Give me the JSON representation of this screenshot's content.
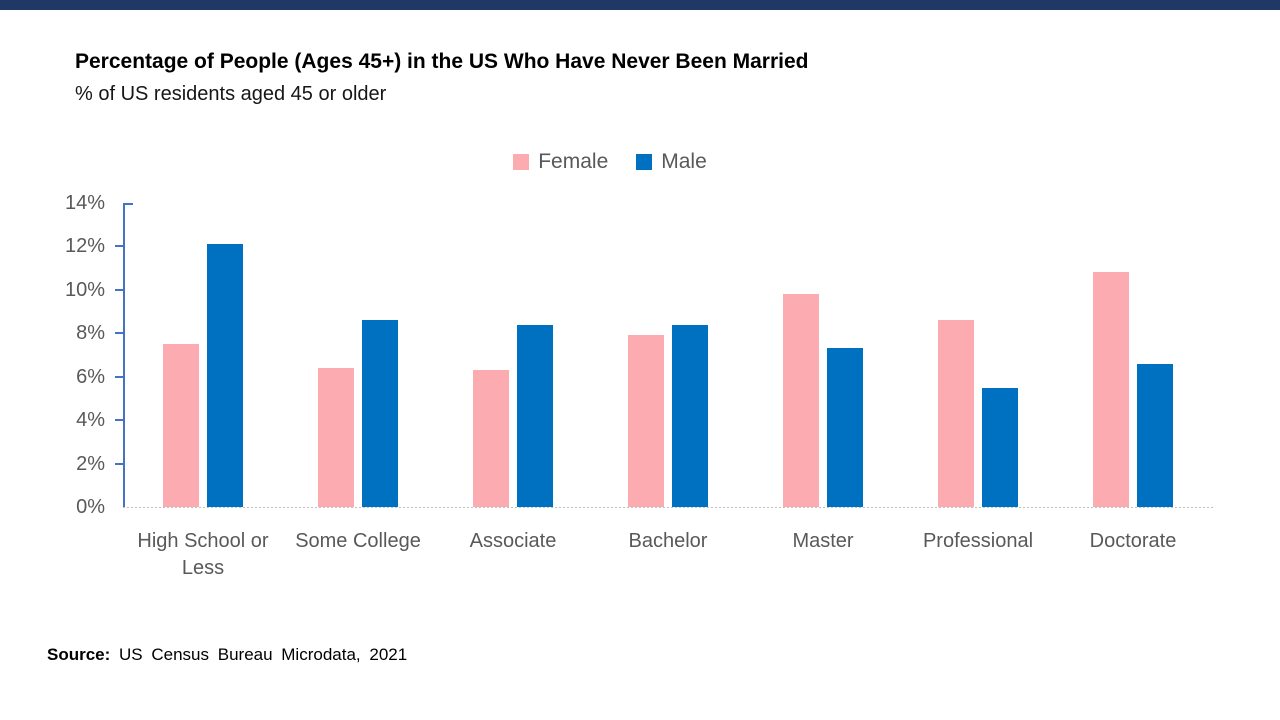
{
  "page": {
    "accent_bar_color": "#1F3864",
    "background_color": "#FFFFFF"
  },
  "header": {
    "title": "Percentage of People (Ages 45+) in the US Who Have Never Been Married",
    "subtitle": "% of US residents aged 45 or older"
  },
  "legend": {
    "position": "top-center",
    "items": [
      {
        "label": "Female",
        "color": "#FCABB1"
      },
      {
        "label": "Male",
        "color": "#0070C0"
      }
    ]
  },
  "chart_data": {
    "type": "bar",
    "title": "Percentage of People (Ages 45+) in the US Who Have Never Been Married",
    "subtitle": "% of US residents aged 45 or older",
    "categories": [
      "High School or Less",
      "Some College",
      "Associate",
      "Bachelor",
      "Master",
      "Professional",
      "Doctorate"
    ],
    "series": [
      {
        "name": "Female",
        "color": "#FCABB1",
        "values": [
          7.5,
          6.4,
          6.3,
          7.9,
          9.8,
          8.6,
          10.8
        ]
      },
      {
        "name": "Male",
        "color": "#0070C0",
        "values": [
          12.1,
          8.6,
          8.4,
          8.4,
          7.3,
          5.5,
          6.6
        ]
      }
    ],
    "xlabel": "",
    "ylabel": "",
    "ylim": [
      0,
      14
    ],
    "yticks": [
      0,
      2,
      4,
      6,
      8,
      10,
      12,
      14
    ],
    "ytick_format": "{v}%",
    "grid": false,
    "axis_color": "#4472C4",
    "baseline_color": "#BFBFBF",
    "tick_label_color": "#595959"
  },
  "source": {
    "label": "Source:",
    "text": "US Census Bureau Microdata, 2021"
  }
}
